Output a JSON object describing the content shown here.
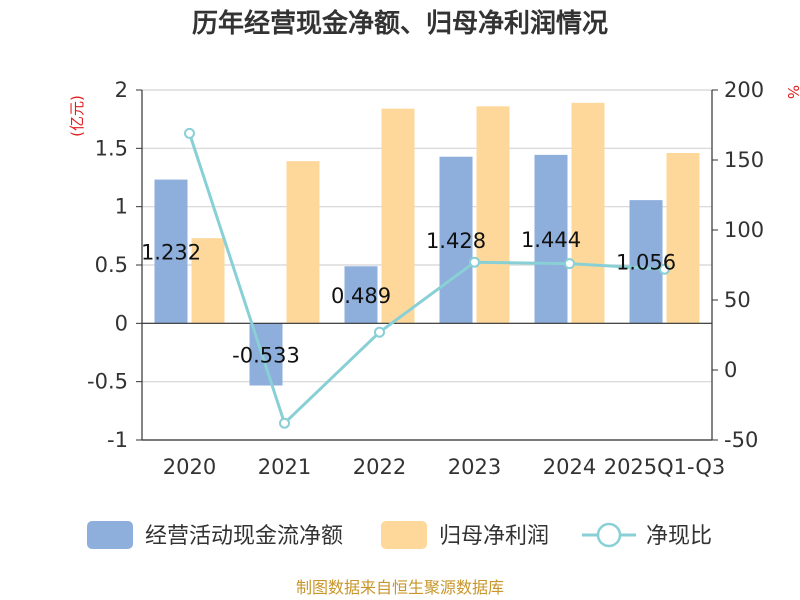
{
  "chart_data": {
    "type": "bar+line",
    "title": "历年经营现金净额、归母净利润情况",
    "categories": [
      "2020",
      "2021",
      "2022",
      "2023",
      "2024",
      "2025Q1-Q3"
    ],
    "series": [
      {
        "name": "经营活动现金流净额",
        "type": "bar",
        "axis": "left",
        "color": "#8eaedb",
        "values": [
          1.232,
          -0.533,
          0.489,
          1.428,
          1.444,
          1.056
        ],
        "labels": [
          "1.232",
          "-0.533",
          "0.489",
          "1.428",
          "1.444",
          "1.056"
        ]
      },
      {
        "name": "归母净利润",
        "type": "bar",
        "axis": "left",
        "color": "#fdd89a",
        "values": [
          0.73,
          1.39,
          1.84,
          1.86,
          1.89,
          1.46
        ]
      },
      {
        "name": "净现比",
        "type": "line",
        "axis": "right",
        "color": "#89d0d6",
        "values": [
          169,
          -38,
          27,
          77,
          76,
          72
        ]
      }
    ],
    "left_axis": {
      "unit": "(亿元)",
      "ylim": [
        -1,
        2
      ],
      "ticks": [
        2,
        1.5,
        1,
        0.5,
        0,
        -0.5,
        -1
      ],
      "tick_labels": [
        "2",
        "1.5",
        "1",
        "0.5",
        "0",
        "-0.5",
        "-1"
      ]
    },
    "right_axis": {
      "unit": "%",
      "ylim": [
        -50,
        200
      ],
      "ticks": [
        200,
        150,
        100,
        50,
        0,
        -50
      ],
      "tick_labels": [
        "200",
        "150",
        "100",
        "50",
        "0",
        "-50"
      ]
    },
    "grid": true,
    "legend_position": "bottom",
    "source": "制图数据来自恒生聚源数据库"
  }
}
